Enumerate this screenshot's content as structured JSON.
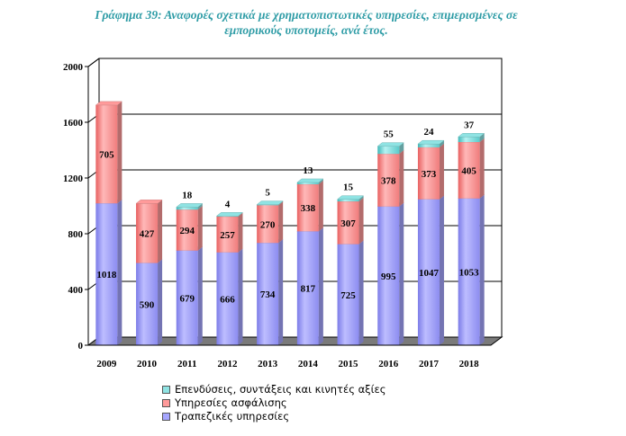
{
  "title_lines": [
    "Γράφημα 39: Αναφορές σχετικά με χρηματοπιστωτικές υπηρεσίες, επιμερισμένες σε",
    "εμπορικούς υποτομείς, ανά έτος."
  ],
  "chart_data": {
    "type": "bar",
    "stacked": true,
    "title": "Γράφημα 39: Αναφορές σχετικά με χρηματοπιστωτικές υπηρεσίες, επιμερισμένες σε εμπορικούς υποτομείς, ανά έτος.",
    "categories": [
      "2009",
      "2010",
      "2011",
      "2012",
      "2013",
      "2014",
      "2015",
      "2016",
      "2017",
      "2018"
    ],
    "series": [
      {
        "name": "Τραπεζικές υπηρεσίες",
        "color": "#A6A6FF",
        "values": [
          1018,
          590,
          679,
          666,
          734,
          817,
          725,
          995,
          1047,
          1053
        ]
      },
      {
        "name": "Υπηρεσίες ασφάλισης",
        "color": "#FF9A9A",
        "values": [
          705,
          427,
          294,
          257,
          270,
          338,
          307,
          378,
          373,
          405
        ]
      },
      {
        "name": "Επενδύσεις, συντάξεις και κινητές αξίες",
        "color": "#8FE3E3",
        "values": [
          0,
          0,
          18,
          4,
          5,
          13,
          15,
          55,
          24,
          37
        ]
      }
    ],
    "value_labels": [
      [
        "1018",
        "590",
        "679",
        "666",
        "734",
        "817",
        "725",
        "995",
        "1047",
        "1053"
      ],
      [
        "705",
        "427",
        "294",
        "257",
        "270",
        "338",
        "307",
        "378",
        "373",
        "405"
      ],
      [
        "",
        "",
        "18",
        "4",
        "5",
        "13",
        "15",
        "55",
        "24",
        "37"
      ]
    ],
    "y_ticks": [
      "0",
      "400",
      "800",
      "1200",
      "1600",
      "2000"
    ],
    "ylim": [
      0,
      2000
    ],
    "xlabel": "",
    "ylabel": "",
    "grid": true,
    "legend_position": "bottom",
    "legend_order": [
      "Επενδύσεις, συντάξεις και κινητές αξίες",
      "Υπηρεσίες ασφάλισης",
      "Τραπεζικές υπηρεσίες"
    ]
  }
}
